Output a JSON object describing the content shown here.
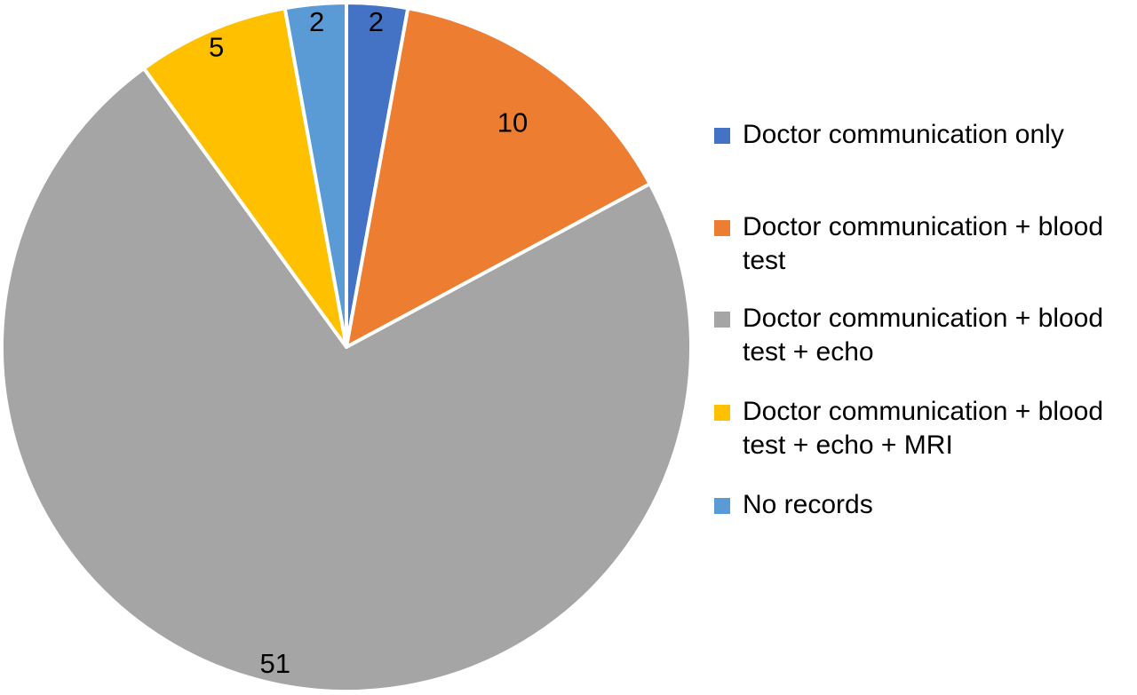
{
  "chart_data": {
    "type": "pie",
    "slices": [
      {
        "label": "Doctor communication only",
        "value": 2,
        "color": "#4472C4"
      },
      {
        "label": "Doctor communication + blood test",
        "value": 10,
        "color": "#ED7D31"
      },
      {
        "label": "Doctor communication + blood test + echo",
        "value": 51,
        "color": "#A5A5A5"
      },
      {
        "label": "Doctor communication + blood test + echo + MRI",
        "value": 5,
        "color": "#FFC000"
      },
      {
        "label": "No records",
        "value": 2,
        "color": "#5B9BD5"
      }
    ],
    "data_labels": [
      "2",
      "10",
      "51",
      "5",
      "2"
    ],
    "legend_position": "right",
    "start_angle": "top, clockwise"
  }
}
